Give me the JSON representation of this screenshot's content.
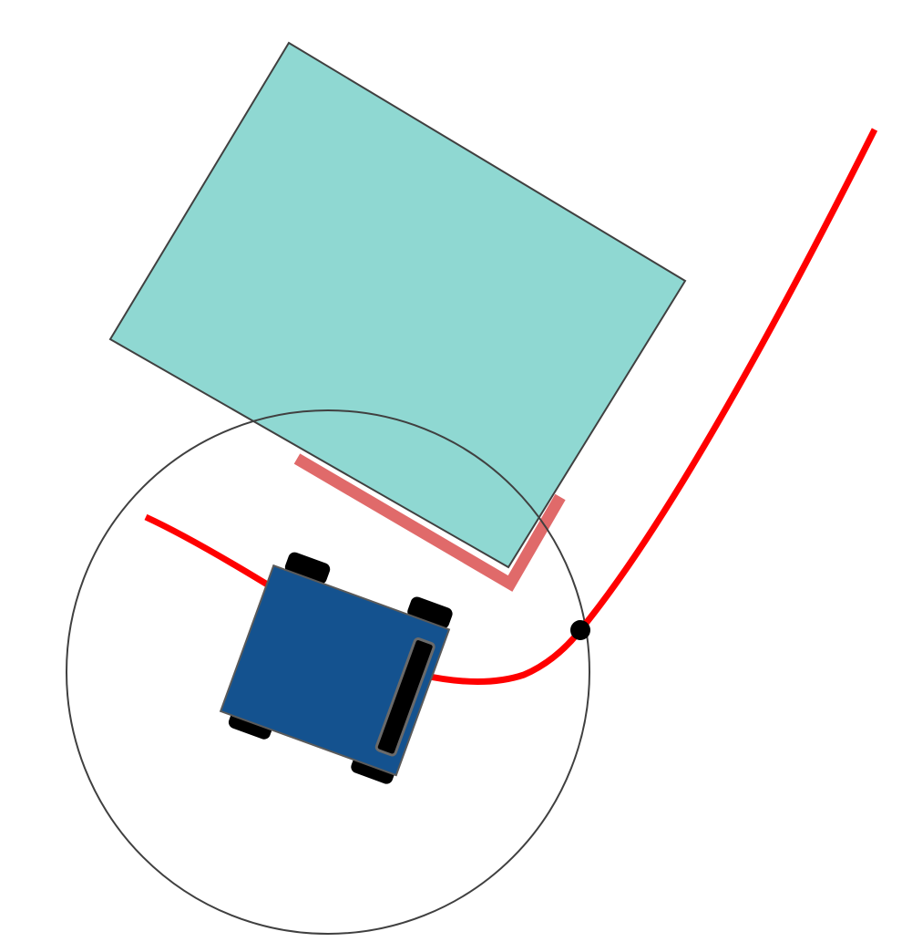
{
  "scene": {
    "colors": {
      "background": "#ffffff",
      "obstacle_fill": "#8fd8d2",
      "obstacle_stroke": "#404040",
      "obstacle_edge_highlight": "#e06a6a",
      "path": "#ff0000",
      "sensor_circle": "#404040",
      "intersection_point": "#000000",
      "robot_body": "#14528f",
      "robot_body_stroke": "#5a5a5a",
      "robot_wheels": "#000000",
      "robot_sensor_bar": "#000000",
      "robot_sensor_bar_stroke": "#6a6a6a"
    },
    "elements": {
      "obstacle": "rectangular-obstacle",
      "obstacle_edge": "obstacle-edge-highlight",
      "path": "planned-path",
      "sensor_range": "sensor-range-circle",
      "lookahead": "path-intersection-point",
      "robot": "robot-vehicle"
    }
  }
}
